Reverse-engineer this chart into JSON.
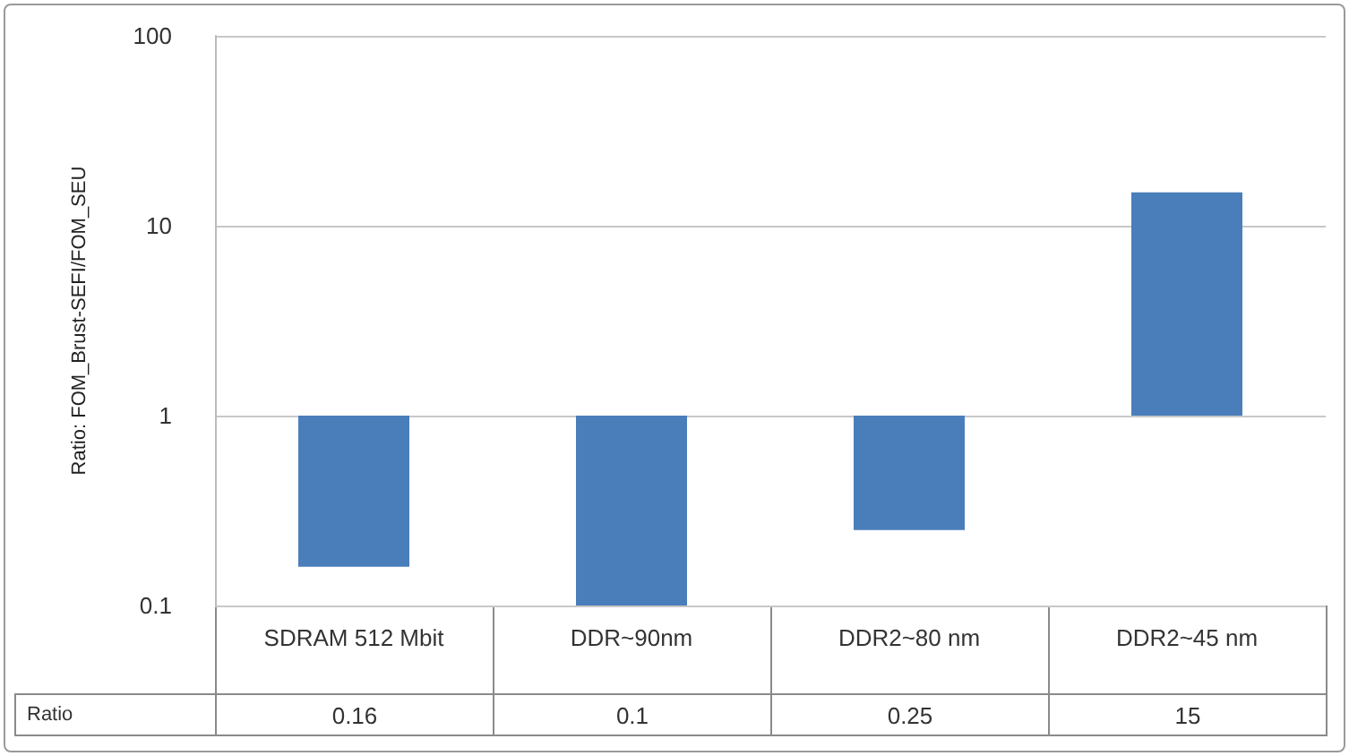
{
  "chart_data": {
    "type": "bar",
    "ylabel": "Ratio: FOM_Brust-SEFI/FOM_SEU",
    "categories": [
      "SDRAM 512 Mbit",
      "DDR~90nm",
      "DDR2~80 nm",
      "DDR2~45 nm"
    ],
    "series": [
      {
        "name": "Ratio",
        "color": "#4a7ebb",
        "base": [
          1,
          1,
          1,
          1
        ],
        "values": [
          -0.84,
          -0.9,
          -0.75,
          14
        ],
        "value_labels": [
          "0.16",
          "0.1",
          "0.25",
          "15"
        ]
      }
    ],
    "log": "y",
    "ylim": [
      0.1,
      100
    ],
    "yticks": [
      0.1,
      1,
      10,
      100
    ],
    "grid": "y",
    "legend": false
  }
}
